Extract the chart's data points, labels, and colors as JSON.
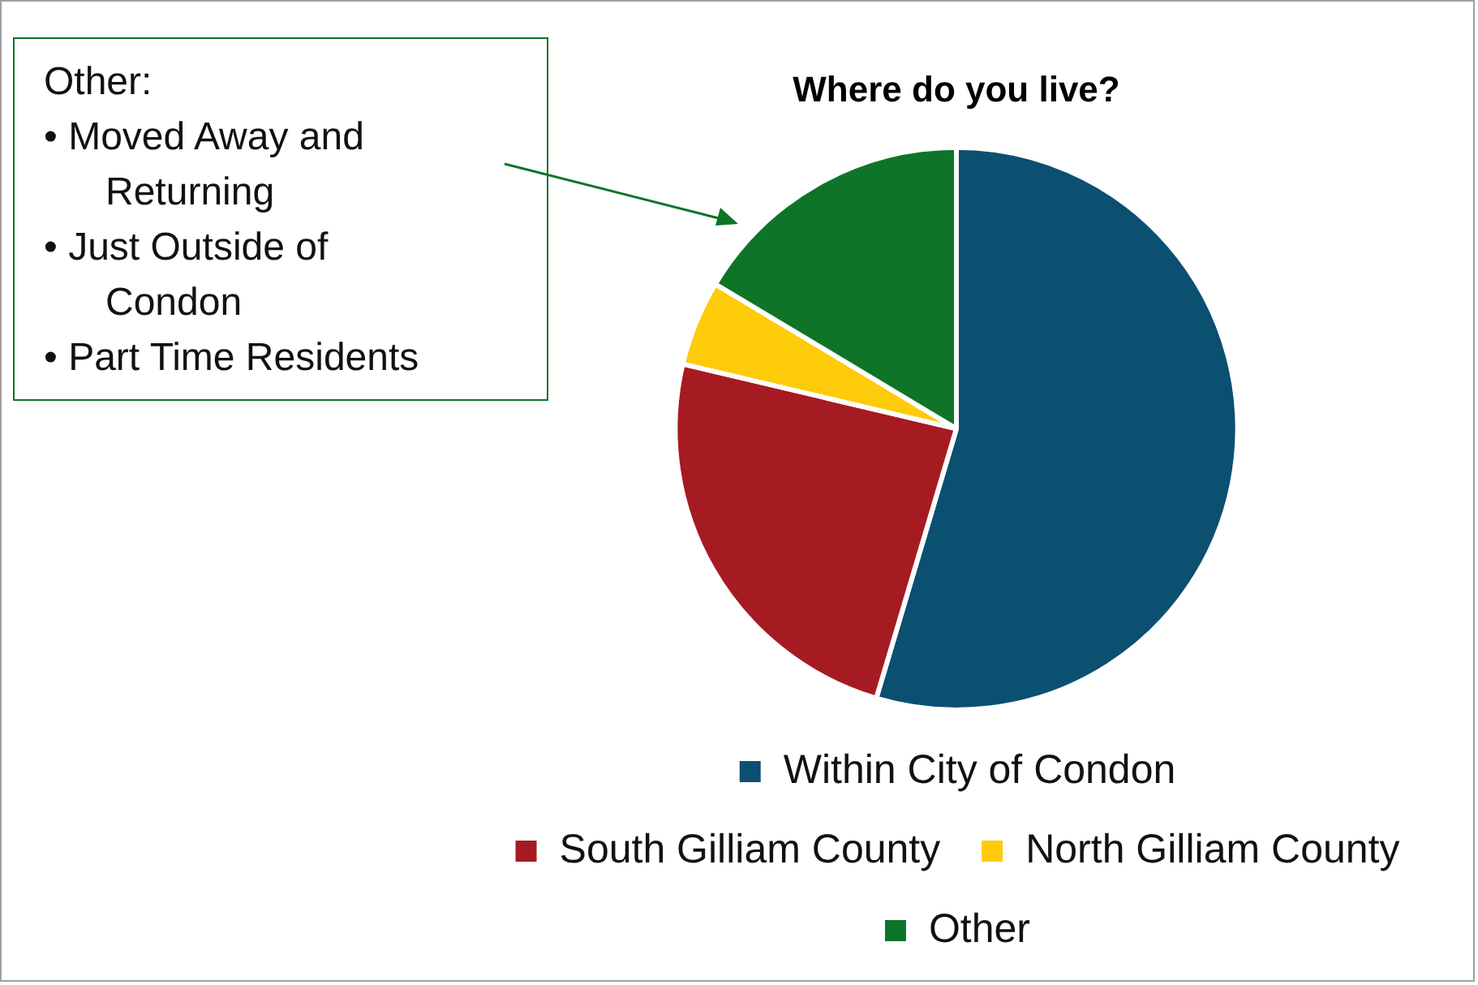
{
  "chart_data": {
    "type": "pie",
    "title": "Where do you live?",
    "categories": [
      "Within City of Condon",
      "South Gilliam County",
      "North Gilliam County",
      "Other"
    ],
    "values": [
      54.6,
      24.1,
      4.9,
      16.4
    ],
    "colors": [
      "#0b4f71",
      "#a61b21",
      "#fecb0a",
      "#0e7428"
    ],
    "legend": "bottom",
    "annotations": [
      "Other:",
      "• Moved Away and Returning",
      "• Just Outside of Condon",
      "• Part Time Residents"
    ]
  }
}
